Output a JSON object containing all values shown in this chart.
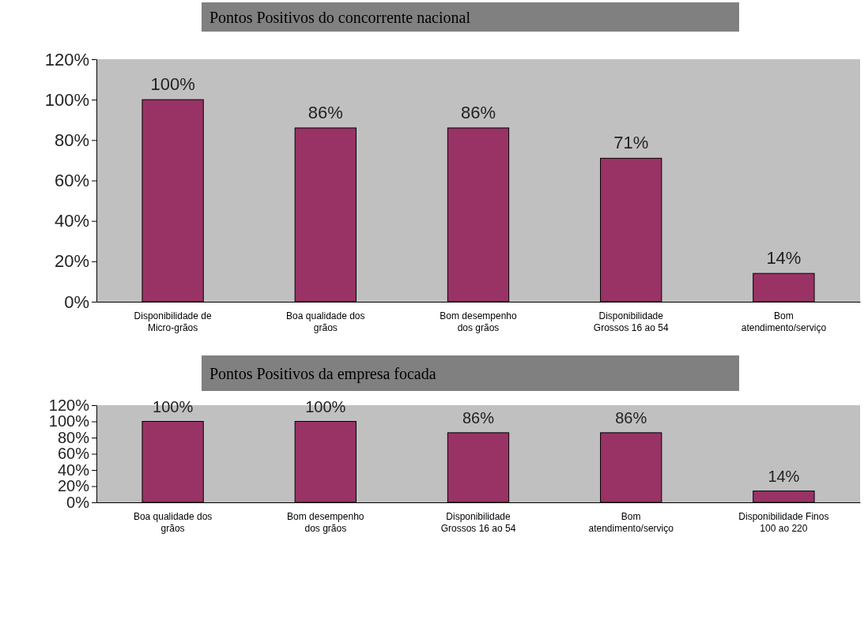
{
  "chart_data": [
    {
      "type": "bar",
      "title": "Pontos Positivos do concorrente nacional",
      "categories": [
        "Disponibilidade de Micro-grãos",
        "Boa qualidade dos grãos",
        "Bom desempenho dos grãos",
        "Disponibilidade Grossos 16 ao 54",
        "Bom atendimento/serviço"
      ],
      "values": [
        100,
        86,
        86,
        71,
        14
      ],
      "value_labels": [
        "100%",
        "86%",
        "86%",
        "71%",
        "14%"
      ],
      "color": "#993366",
      "ylim": [
        0,
        120
      ],
      "yticks": [
        {
          "value": 0,
          "label": "0%"
        },
        {
          "value": 20,
          "label": "20%"
        },
        {
          "value": 40,
          "label": "40%"
        },
        {
          "value": 60,
          "label": "60%"
        },
        {
          "value": 80,
          "label": "80%"
        },
        {
          "value": 100,
          "label": "100%"
        },
        {
          "value": 120,
          "label": "120%"
        }
      ],
      "grid": false
    },
    {
      "type": "bar",
      "title": "Pontos Positivos da empresa focada",
      "categories": [
        "Boa qualidade dos grãos",
        "Bom desempenho dos grãos",
        "Disponibilidade Grossos 16 ao 54",
        "Bom atendimento/serviço",
        "Disponibilidade Finos 100 ao 220"
      ],
      "values": [
        100,
        100,
        86,
        86,
        14
      ],
      "value_labels": [
        "100%",
        "100%",
        "86%",
        "86%",
        "14%"
      ],
      "color": "#993366",
      "ylim": [
        0,
        120
      ],
      "yticks": [
        {
          "value": 0,
          "label": "0%"
        },
        {
          "value": 20,
          "label": "20%"
        },
        {
          "value": 40,
          "label": "40%"
        },
        {
          "value": 60,
          "label": "60%"
        },
        {
          "value": 80,
          "label": "80%"
        },
        {
          "value": 100,
          "label": "100%"
        },
        {
          "value": 120,
          "label": "120%"
        }
      ],
      "grid": false
    }
  ]
}
